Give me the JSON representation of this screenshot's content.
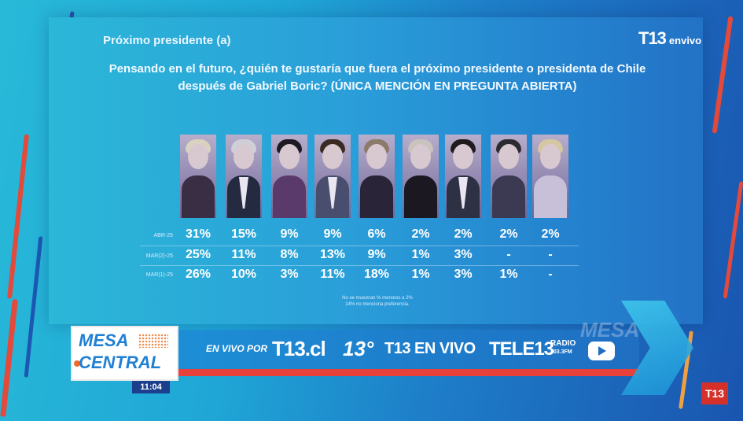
{
  "header": {
    "title": "Próximo presidente (a)",
    "question": "Pensando en el futuro, ¿quién te gustaría que fuera el próximo presidente o presidenta de Chile después de Gabriel Boric? (ÚNICA MENCIÓN EN PREGUNTA ABIERTA)",
    "brand_main": "T13",
    "brand_sub": "envivo"
  },
  "table": {
    "row_labels": [
      "ABR-25",
      "MAR(2)-25",
      "MAR(1)-25"
    ],
    "rows": [
      [
        "31%",
        "15%",
        "9%",
        "9%",
        "6%",
        "2%",
        "2%",
        "2%",
        "2%"
      ],
      [
        "25%",
        "11%",
        "8%",
        "13%",
        "9%",
        "1%",
        "3%",
        "-",
        "-"
      ],
      [
        "26%",
        "10%",
        "3%",
        "11%",
        "18%",
        "1%",
        "3%",
        "1%",
        "-"
      ]
    ],
    "notes": [
      "No se muestran % menores a 2%",
      "14% no menciona preferencia."
    ]
  },
  "footer": {
    "program_line1": "MESA",
    "program_line2": "CENTRAL",
    "time": "11:04",
    "live_label": "EN VIVO POR",
    "channel1": "T13.cl",
    "channel2": "13°",
    "channel3": "T13 EN VIVO",
    "channel4": "TELE13",
    "radio_line1": "RADIO",
    "radio_line2": "103.3FM",
    "watermark": "MESA",
    "corner": "T13"
  },
  "colors": {
    "background": "#1fa6d6",
    "accent_red": "#e8413a",
    "brand_blue": "#1f7fd3"
  }
}
